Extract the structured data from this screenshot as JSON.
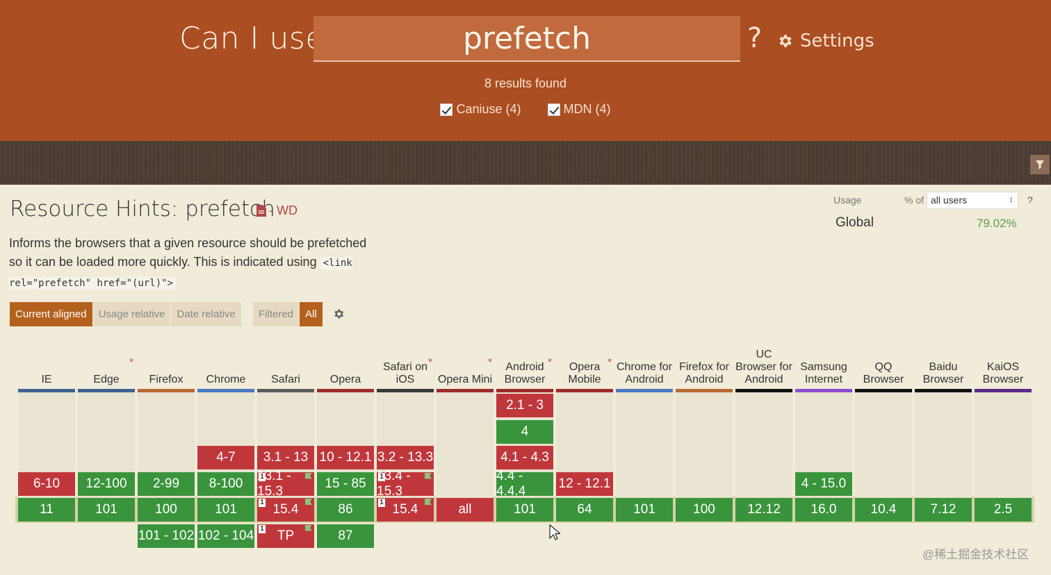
{
  "header": {
    "brand": "Can I use",
    "search_value": "prefetch",
    "help": "?",
    "settings_label": "Settings",
    "results": "8 results found",
    "filters": [
      {
        "label": "Caniuse (4)",
        "checked": true
      },
      {
        "label": "MDN (4)",
        "checked": true
      }
    ]
  },
  "feature": {
    "title": "Resource Hints: prefetch",
    "status": "- WD",
    "description_before": "Informs the browsers that a given resource should be prefetched so it can be loaded more quickly. This is indicated using",
    "description_code": "<link rel=\"prefetch\" href=\"(url)\">"
  },
  "usage": {
    "label": "Usage",
    "pct_of": "% of",
    "users_option": "all users",
    "help": "?",
    "region": "Global",
    "value": "79.02%"
  },
  "views": {
    "buttons": [
      "Current aligned",
      "Usage relative",
      "Date relative"
    ],
    "active": "Current aligned",
    "filter_buttons": [
      "Filtered",
      "All"
    ],
    "filter_active": "All"
  },
  "colors": {
    "supported": "#39943c",
    "unsupported": "#c0373b",
    "header_bg": "#ab4e22"
  },
  "browsers": [
    {
      "name": "IE",
      "star": false,
      "line": "#3f6190",
      "versions": [
        {
          "v": "6-10",
          "s": "n",
          "r": 3
        },
        {
          "v": "11",
          "s": "y",
          "r": 4
        }
      ]
    },
    {
      "name": "Edge",
      "star": true,
      "line": "#3f6190",
      "versions": [
        {
          "v": "12-100",
          "s": "y",
          "r": 3
        },
        {
          "v": "101",
          "s": "y",
          "r": 4
        }
      ]
    },
    {
      "name": "Firefox",
      "star": false,
      "line": "#b86a33",
      "versions": [
        {
          "v": "2-99",
          "s": "y",
          "r": 3
        },
        {
          "v": "100",
          "s": "y",
          "r": 4
        },
        {
          "v": "101 - 102",
          "s": "y",
          "r": 5
        }
      ]
    },
    {
      "name": "Chrome",
      "star": false,
      "line": "#4a7ac2",
      "versions": [
        {
          "v": "4-7",
          "s": "n",
          "r": 2
        },
        {
          "v": "8-100",
          "s": "y",
          "r": 3
        },
        {
          "v": "101",
          "s": "y",
          "r": 4
        },
        {
          "v": "102 - 104",
          "s": "y",
          "r": 5
        }
      ]
    },
    {
      "name": "Safari",
      "star": false,
      "line": "#5b5b5b",
      "versions": [
        {
          "v": "3.1 - 13",
          "s": "n",
          "r": 2
        },
        {
          "v": "13.1 - 15.3",
          "s": "n",
          "r": 3,
          "note": true,
          "flag": true
        },
        {
          "v": "15.4",
          "s": "n",
          "r": 4,
          "note": true,
          "flag": true
        },
        {
          "v": "TP",
          "s": "n",
          "r": 5,
          "note": true,
          "flag": true
        }
      ]
    },
    {
      "name": "Opera",
      "star": false,
      "line": "#9e2b2b",
      "versions": [
        {
          "v": "10 - 12.1",
          "s": "n",
          "r": 2
        },
        {
          "v": "15 - 85",
          "s": "y",
          "r": 3
        },
        {
          "v": "86",
          "s": "y",
          "r": 4
        },
        {
          "v": "87",
          "s": "y",
          "r": 5
        }
      ]
    },
    {
      "name": "Safari on iOS",
      "star": true,
      "line": "#3a3a3a",
      "versions": [
        {
          "v": "3.2 - 13.3",
          "s": "n",
          "r": 2
        },
        {
          "v": "13.4 - 15.3",
          "s": "n",
          "r": 3,
          "note": true,
          "flag": true
        },
        {
          "v": "15.4",
          "s": "n",
          "r": 4,
          "note": true,
          "flag": true
        }
      ]
    },
    {
      "name": "Opera Mini",
      "star": true,
      "line": "#9e2b2b",
      "versions": [
        {
          "v": "all",
          "s": "n",
          "r": 4
        }
      ]
    },
    {
      "name": "Android Browser",
      "star": true,
      "line": "#9e2b2b",
      "versions": [
        {
          "v": "2.1 - 3",
          "s": "n",
          "r": 0
        },
        {
          "v": "4",
          "s": "y",
          "r": 1
        },
        {
          "v": "4.1 - 4.3",
          "s": "n",
          "r": 2
        },
        {
          "v": "4.4 - 4.4.4",
          "s": "y",
          "r": 3
        },
        {
          "v": "101",
          "s": "y",
          "r": 4
        }
      ]
    },
    {
      "name": "Opera Mobile",
      "star": true,
      "line": "#9e2b2b",
      "versions": [
        {
          "v": "12 - 12.1",
          "s": "n",
          "r": 3
        },
        {
          "v": "64",
          "s": "y",
          "r": 4
        }
      ]
    },
    {
      "name": "Chrome for Android",
      "star": false,
      "line": "#4a7ac2",
      "versions": [
        {
          "v": "101",
          "s": "y",
          "r": 4
        }
      ]
    },
    {
      "name": "Firefox for Android",
      "star": false,
      "line": "#b86a33",
      "versions": [
        {
          "v": "100",
          "s": "y",
          "r": 4
        }
      ]
    },
    {
      "name": "UC Browser for Android",
      "star": false,
      "line": "#111111",
      "versions": [
        {
          "v": "12.12",
          "s": "y",
          "r": 4
        }
      ]
    },
    {
      "name": "Samsung Internet",
      "star": false,
      "line": "#8a4fd1",
      "versions": [
        {
          "v": "4 - 15.0",
          "s": "y",
          "r": 3
        },
        {
          "v": "16.0",
          "s": "y",
          "r": 4
        }
      ]
    },
    {
      "name": "QQ Browser",
      "star": false,
      "line": "#111111",
      "versions": [
        {
          "v": "10.4",
          "s": "y",
          "r": 4
        }
      ]
    },
    {
      "name": "Baidu Browser",
      "star": false,
      "line": "#111111",
      "versions": [
        {
          "v": "7.12",
          "s": "y",
          "r": 4
        }
      ]
    },
    {
      "name": "KaiOS Browser",
      "star": false,
      "line": "#5a2a8a",
      "versions": [
        {
          "v": "2.5",
          "s": "y",
          "r": 4
        }
      ]
    }
  ],
  "watermark": "@稀土掘金技术社区"
}
